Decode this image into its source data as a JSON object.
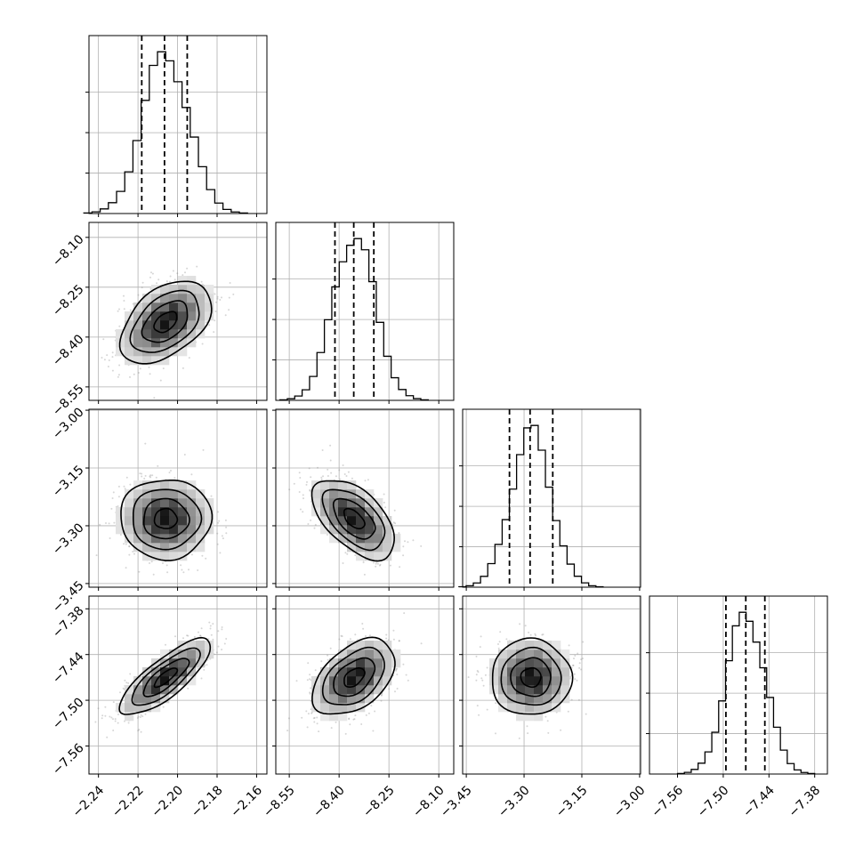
{
  "chart_data": {
    "type": "corner",
    "parameters": [
      {
        "ticks": [
          -2.24,
          -2.22,
          -2.2,
          -2.18,
          -2.16
        ],
        "tick_labels": [
          "−2.24",
          "−2.22",
          "−2.20",
          "−2.18",
          "−2.16"
        ],
        "range": [
          -2.2448,
          -2.1548
        ],
        "mean": -2.206,
        "sd": 0.0115,
        "quantiles": [
          -2.2181,
          -2.2066,
          -2.1951
        ]
      },
      {
        "ticks": [
          -8.55,
          -8.4,
          -8.25,
          -8.1
        ],
        "tick_labels": [
          "−8.55",
          "−8.40",
          "−8.25",
          "−8.10"
        ],
        "range": [
          -8.5905,
          -8.055
        ],
        "mean": -8.355,
        "sd": 0.062,
        "quantiles": [
          -8.4125,
          -8.3559,
          -8.2955
        ]
      },
      {
        "ticks": [
          -3.45,
          -3.3,
          -3.15,
          -3.0
        ],
        "tick_labels": [
          "−3.45",
          "−3.30",
          "−3.15",
          "−3.00"
        ],
        "range": [
          -3.4595,
          -2.9975
        ],
        "mean": -3.282,
        "sd": 0.052,
        "quantiles": [
          -3.3379,
          -3.2844,
          -3.2255
        ]
      },
      {
        "ticks": [
          -7.56,
          -7.5,
          -7.44,
          -7.38
        ],
        "tick_labels": [
          "−7.56",
          "−7.50",
          "−7.44",
          "−7.38"
        ],
        "range": [
          -7.5968,
          -7.3633
        ],
        "mean": -7.47,
        "sd": 0.025,
        "quantiles": [
          -7.4965,
          -7.4704,
          -7.4454
        ]
      }
    ],
    "correlations": [
      [
        1,
        0.45,
        0.0,
        0.8
      ],
      [
        0.45,
        1,
        -0.55,
        0.45
      ],
      [
        0.0,
        -0.55,
        1,
        0.0
      ],
      [
        0.8,
        0.45,
        0.0,
        1
      ]
    ],
    "contour_levels_sigma": [
      0.5,
      1.0,
      1.5,
      2.0
    ],
    "hist_bins": 20,
    "grid": true,
    "colors": {
      "points": "#8a8a8a",
      "density_max": "#000000",
      "lines": "#000000"
    }
  }
}
